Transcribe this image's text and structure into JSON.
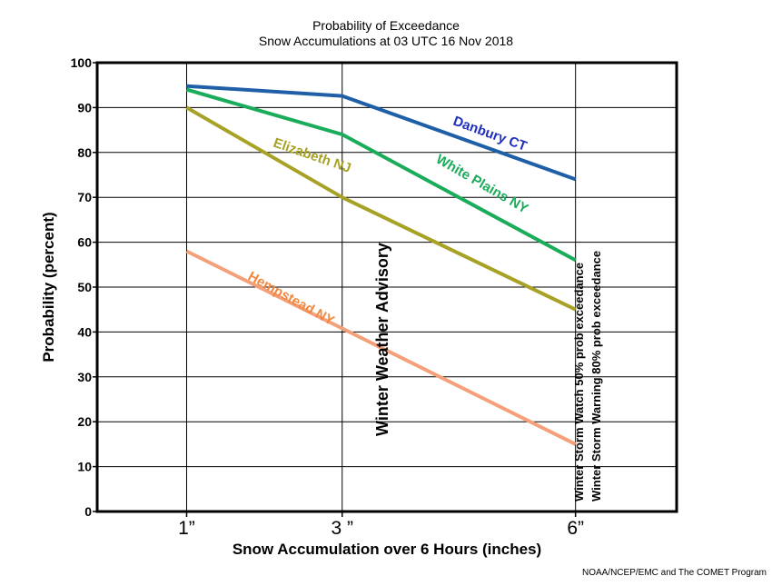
{
  "chart_data": {
    "type": "line",
    "title": "Probability of Exceedance",
    "subtitle": "Snow Accumulations at 03 UTC 16 Nov 2018",
    "xlabel": "Snow Accumulation over 6 Hours (inches)",
    "ylabel": "Probability (percent)",
    "categories": [
      "1”",
      "3 ”",
      "6”"
    ],
    "x_values": [
      1,
      3,
      6
    ],
    "xlim": [
      -0.15,
      7.3
    ],
    "ylim": [
      0,
      100
    ],
    "y_ticks": [
      0,
      10,
      20,
      30,
      40,
      50,
      60,
      70,
      80,
      90,
      100
    ],
    "grid": true,
    "series": [
      {
        "name": "Danbury CT",
        "x": [
          1,
          3,
          6
        ],
        "values": [
          94.8,
          92.6,
          74.0
        ],
        "color": "#1f5fa8",
        "label_color": "#1f2fbf"
      },
      {
        "name": "White Plains NY",
        "x": [
          1,
          3,
          6
        ],
        "values": [
          94.0,
          84.0,
          56.0
        ],
        "color": "#1aac5a",
        "label_color": "#1aac5a"
      },
      {
        "name": "Elizabeth NJ",
        "x": [
          1,
          3,
          6
        ],
        "values": [
          90.0,
          70.0,
          45.0
        ],
        "color": "#a7a225",
        "label_color": "#a7a225"
      },
      {
        "name": "Hempstead NY",
        "x": [
          1,
          6
        ],
        "values": [
          58.0,
          15.0
        ],
        "color": "#f4a07a",
        "label_color": "#f08840"
      }
    ],
    "annotations": [
      "Winter Weather Advisory",
      "Winter Storm Watch 50% prob exceedance",
      "Winter Storm Warning 80% prob exceedance"
    ],
    "credit": "NOAA/NCEP/EMC and The COMET Program"
  }
}
